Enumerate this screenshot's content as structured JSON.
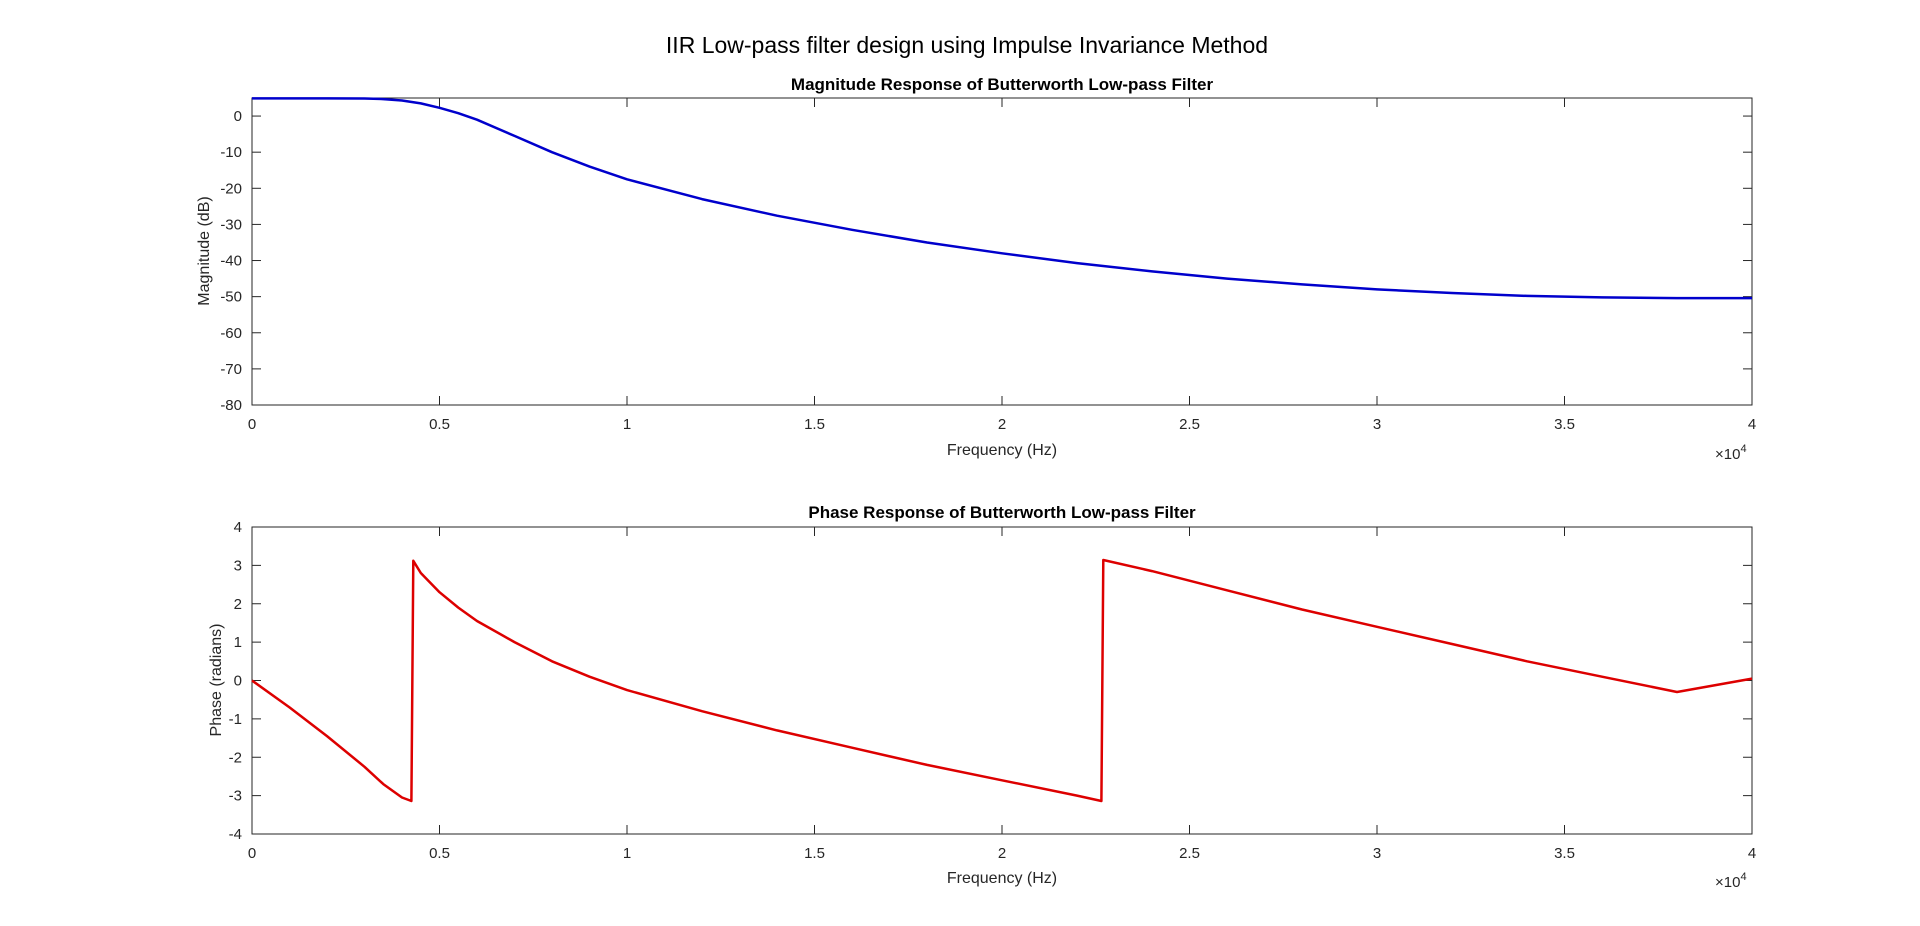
{
  "figure": {
    "title": "IIR Low-pass filter design using Impulse Invariance Method"
  },
  "chart_data": [
    {
      "type": "line",
      "title": "Magnitude Response of Butterworth Low-pass Filter",
      "xlabel": "Frequency (Hz)",
      "ylabel": "Magnitude (dB)",
      "x_exponent_label": "×10",
      "x_exponent": "4",
      "xlim": [
        0,
        40000
      ],
      "ylim": [
        -80,
        5
      ],
      "xticks": [
        0,
        5000,
        10000,
        15000,
        20000,
        25000,
        30000,
        35000,
        40000
      ],
      "xtick_labels": [
        "0",
        "0.5",
        "1",
        "1.5",
        "2",
        "2.5",
        "3",
        "3.5",
        "4"
      ],
      "yticks": [
        0,
        -10,
        -20,
        -30,
        -40,
        -50,
        -60,
        -70,
        -80
      ],
      "ytick_labels": [
        "0",
        "-10",
        "-20",
        "-30",
        "-40",
        "-50",
        "-60",
        "-70",
        "-80"
      ],
      "grid": false,
      "series": [
        {
          "color": "#0000cc",
          "x": [
            0,
            1000,
            2000,
            3000,
            3500,
            4000,
            4500,
            5000,
            5500,
            6000,
            7000,
            8000,
            9000,
            10000,
            12000,
            14000,
            16000,
            18000,
            20000,
            22000,
            24000,
            26000,
            28000,
            30000,
            32000,
            34000,
            36000,
            38000,
            40000
          ],
          "y": [
            4.9,
            4.9,
            4.9,
            4.85,
            4.7,
            4.3,
            3.5,
            2.3,
            0.8,
            -1.0,
            -5.5,
            -10.0,
            -14.0,
            -17.5,
            -23.0,
            -27.6,
            -31.5,
            -35.0,
            -38.0,
            -40.7,
            -43.0,
            -45.0,
            -46.6,
            -48.0,
            -49.0,
            -49.8,
            -50.2,
            -50.4,
            -50.4
          ]
        }
      ]
    },
    {
      "type": "line",
      "title": "Phase Response of Butterworth Low-pass Filter",
      "xlabel": "Frequency (Hz)",
      "ylabel": "Phase (radians)",
      "x_exponent_label": "×10",
      "x_exponent": "4",
      "xlim": [
        0,
        40000
      ],
      "ylim": [
        -4,
        4
      ],
      "xticks": [
        0,
        5000,
        10000,
        15000,
        20000,
        25000,
        30000,
        35000,
        40000
      ],
      "xtick_labels": [
        "0",
        "0.5",
        "1",
        "1.5",
        "2",
        "2.5",
        "3",
        "3.5",
        "4"
      ],
      "yticks": [
        4,
        3,
        2,
        1,
        0,
        -1,
        -2,
        -3,
        -4
      ],
      "ytick_labels": [
        "4",
        "3",
        "2",
        "1",
        "0",
        "-1",
        "-2",
        "-3",
        "-4"
      ],
      "grid": false,
      "series": [
        {
          "color": "#dd0000",
          "x": [
            0,
            1000,
            2000,
            3000,
            3500,
            4000,
            4250,
            4300,
            4500,
            5000,
            5500,
            6000,
            7000,
            8000,
            9000,
            10000,
            12000,
            14000,
            16000,
            18000,
            20000,
            22000,
            22650,
            22700,
            24000,
            26000,
            28000,
            30000,
            32000,
            34000,
            36000,
            38000,
            40000
          ],
          "y": [
            0,
            -0.7,
            -1.45,
            -2.25,
            -2.7,
            -3.05,
            -3.14,
            3.12,
            2.8,
            2.3,
            1.9,
            1.55,
            1.0,
            0.5,
            0.1,
            -0.25,
            -0.8,
            -1.3,
            -1.75,
            -2.2,
            -2.6,
            -3.0,
            -3.14,
            3.14,
            2.85,
            2.35,
            1.85,
            1.4,
            0.95,
            0.5,
            0.1,
            -0.3,
            0.05
          ]
        }
      ]
    }
  ]
}
